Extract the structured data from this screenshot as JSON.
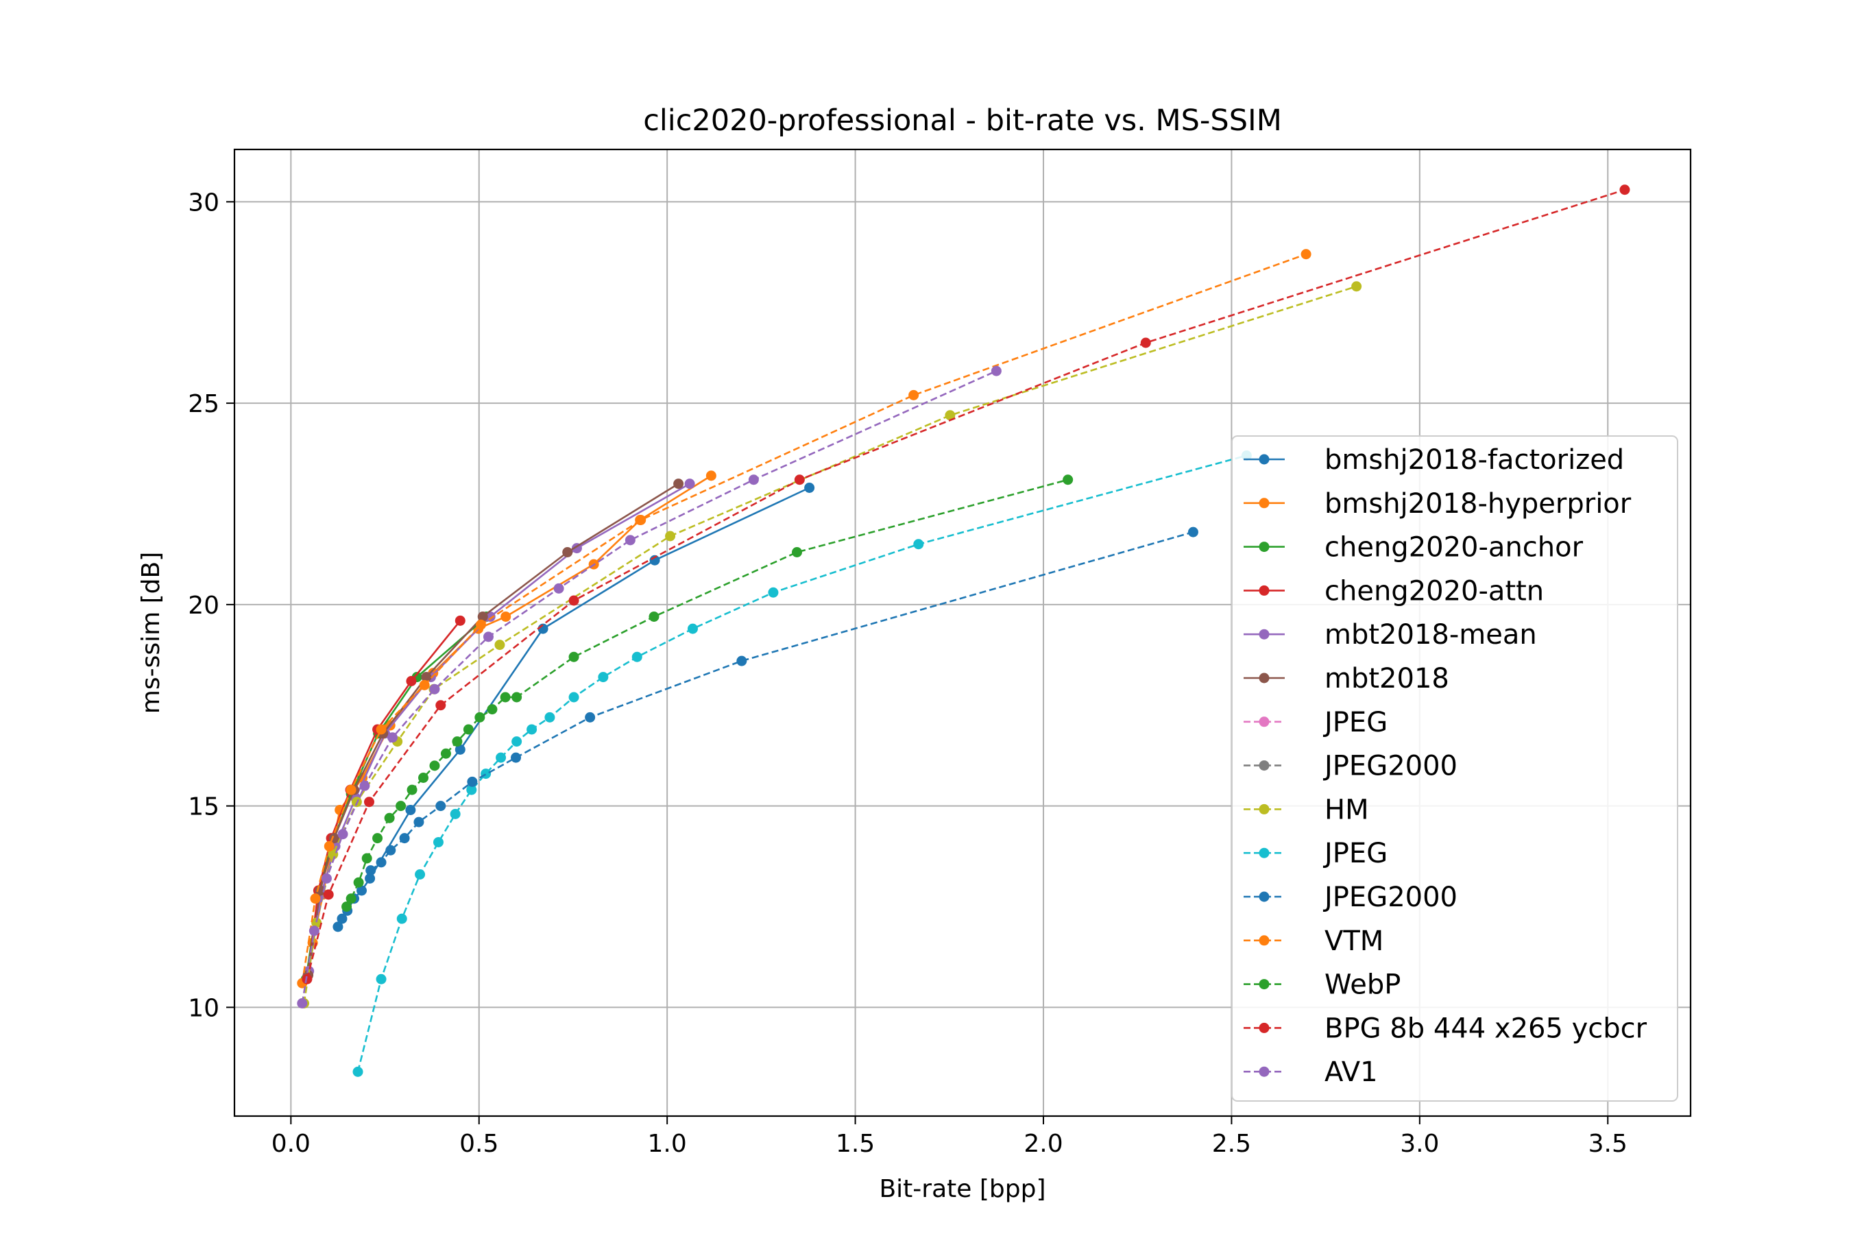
{
  "chart_data": {
    "type": "line",
    "title": "clic2020-professional - bit-rate vs. MS-SSIM",
    "xlabel": "Bit-rate [bpp]",
    "ylabel": "ms-ssim [dB]",
    "xlim": [
      -0.15,
      3.72
    ],
    "ylim": [
      7.3,
      31.3
    ],
    "xticks": [
      0.0,
      0.5,
      1.0,
      1.5,
      2.0,
      2.5,
      3.0,
      3.5
    ],
    "xtick_labels": [
      "0.0",
      "0.5",
      "1.0",
      "1.5",
      "2.0",
      "2.5",
      "3.0",
      "3.5"
    ],
    "yticks": [
      10,
      15,
      20,
      25,
      30
    ],
    "ytick_labels": [
      "10",
      "15",
      "20",
      "25",
      "30"
    ],
    "grid": true,
    "legend_position": "lower-right",
    "series": [
      {
        "name": "bmshj2018-factorized",
        "color": "#1f77b4",
        "dashed": false,
        "x": [
          0.125,
          0.136,
          0.15,
          0.168,
          0.188,
          0.21,
          0.318,
          0.45,
          0.67,
          0.967,
          1.378
        ],
        "y": [
          12.0,
          12.2,
          12.4,
          12.7,
          12.9,
          13.2,
          14.9,
          16.4,
          19.4,
          21.1,
          22.9
        ]
      },
      {
        "name": "bmshj2018-hyperprior",
        "color": "#ff7f0e",
        "dashed": false,
        "x": [
          0.058,
          0.085,
          0.13,
          0.19,
          0.264,
          0.378,
          0.498,
          0.571,
          0.805,
          0.928,
          1.117
        ],
        "y": [
          11.6,
          12.8,
          14.9,
          15.7,
          17.0,
          18.3,
          19.4,
          19.7,
          21.0,
          22.1,
          23.2
        ]
      },
      {
        "name": "cheng2020-anchor",
        "color": "#2ca02c",
        "dashed": false,
        "x": [
          0.04,
          0.075,
          0.11,
          0.16,
          0.232,
          0.335,
          0.52
        ],
        "y": [
          10.7,
          12.9,
          14.1,
          15.3,
          16.8,
          18.2,
          19.7
        ]
      },
      {
        "name": "cheng2020-attn",
        "color": "#d62728",
        "dashed": false,
        "x": [
          0.045,
          0.073,
          0.107,
          0.158,
          0.23,
          0.32,
          0.45
        ],
        "y": [
          10.8,
          12.9,
          14.2,
          15.4,
          16.9,
          18.1,
          19.6
        ]
      },
      {
        "name": "mbt2018-mean",
        "color": "#9467bd",
        "dashed": false,
        "x": [
          0.048,
          0.08,
          0.118,
          0.172,
          0.25,
          0.372,
          0.53,
          0.76,
          1.06
        ],
        "y": [
          10.9,
          12.8,
          14.0,
          15.2,
          16.8,
          18.2,
          19.7,
          21.4,
          23.0
        ]
      },
      {
        "name": "mbt2018",
        "color": "#8c564b",
        "dashed": false,
        "x": [
          0.046,
          0.078,
          0.115,
          0.168,
          0.245,
          0.36,
          0.51,
          0.735,
          1.03
        ],
        "y": [
          10.8,
          12.9,
          14.2,
          15.4,
          16.8,
          18.2,
          19.7,
          21.3,
          23.0
        ]
      },
      {
        "name": "JPEG",
        "color": "#e377c2",
        "dashed": true,
        "x": [],
        "y": []
      },
      {
        "name": "JPEG2000",
        "color": "#7f7f7f",
        "dashed": true,
        "x": [],
        "y": []
      },
      {
        "name": "HM",
        "color": "#bcbd22",
        "dashed": true,
        "x": [
          0.035,
          0.068,
          0.112,
          0.175,
          0.283,
          0.38,
          0.555,
          1.008,
          1.752,
          2.832
        ],
        "y": [
          10.1,
          12.1,
          13.8,
          15.1,
          16.6,
          17.9,
          19.0,
          21.7,
          24.7,
          27.9
        ]
      },
      {
        "name": "JPEG",
        "color": "#17becf",
        "dashed": true,
        "x": [
          0.178,
          0.24,
          0.295,
          0.343,
          0.392,
          0.437,
          0.48,
          0.518,
          0.558,
          0.6,
          0.64,
          0.688,
          0.752,
          0.83,
          0.92,
          1.068,
          1.282,
          1.668,
          2.54
        ],
        "y": [
          8.4,
          10.7,
          12.2,
          13.3,
          14.1,
          14.8,
          15.4,
          15.8,
          16.2,
          16.6,
          16.9,
          17.2,
          17.7,
          18.2,
          18.7,
          19.4,
          20.3,
          21.5,
          23.7
        ]
      },
      {
        "name": "JPEG2000",
        "color": "#1f77b4",
        "dashed": true,
        "x": [
          0.212,
          0.24,
          0.265,
          0.302,
          0.34,
          0.398,
          0.482,
          0.598,
          0.795,
          1.198,
          2.398
        ],
        "y": [
          13.4,
          13.6,
          13.9,
          14.2,
          14.6,
          15.0,
          15.6,
          16.2,
          17.2,
          18.6,
          21.8
        ]
      },
      {
        "name": "VTM",
        "color": "#ff7f0e",
        "dashed": true,
        "x": [
          0.03,
          0.065,
          0.102,
          0.16,
          0.24,
          0.355,
          0.505,
          0.93,
          1.655,
          2.698
        ],
        "y": [
          10.6,
          12.7,
          14.0,
          15.4,
          16.9,
          18.0,
          19.5,
          22.1,
          25.2,
          28.7
        ]
      },
      {
        "name": "WebP",
        "color": "#2ca02c",
        "dashed": true,
        "x": [
          0.148,
          0.16,
          0.18,
          0.202,
          0.23,
          0.262,
          0.292,
          0.322,
          0.352,
          0.382,
          0.412,
          0.442,
          0.472,
          0.502,
          0.535,
          0.57,
          0.6,
          0.752,
          0.965,
          1.345,
          2.065
        ],
        "y": [
          12.5,
          12.7,
          13.1,
          13.7,
          14.2,
          14.7,
          15.0,
          15.4,
          15.7,
          16.0,
          16.3,
          16.6,
          16.9,
          17.2,
          17.4,
          17.7,
          17.7,
          18.7,
          19.7,
          21.3,
          23.1
        ]
      },
      {
        "name": "BPG 8b 444 x265 ycbcr",
        "color": "#d62728",
        "dashed": true,
        "x": [
          0.043,
          0.1,
          0.208,
          0.398,
          0.752,
          1.352,
          2.272,
          3.545
        ],
        "y": [
          10.7,
          12.8,
          15.1,
          17.5,
          20.1,
          23.1,
          26.5,
          30.3
        ]
      },
      {
        "name": "AV1",
        "color": "#9467bd",
        "dashed": true,
        "x": [
          0.03,
          0.062,
          0.095,
          0.138,
          0.196,
          0.27,
          0.382,
          0.525,
          0.712,
          0.902,
          1.23,
          1.875
        ],
        "y": [
          10.1,
          11.9,
          13.2,
          14.3,
          15.5,
          16.7,
          17.9,
          19.2,
          20.4,
          21.6,
          23.1,
          25.8
        ]
      }
    ]
  }
}
